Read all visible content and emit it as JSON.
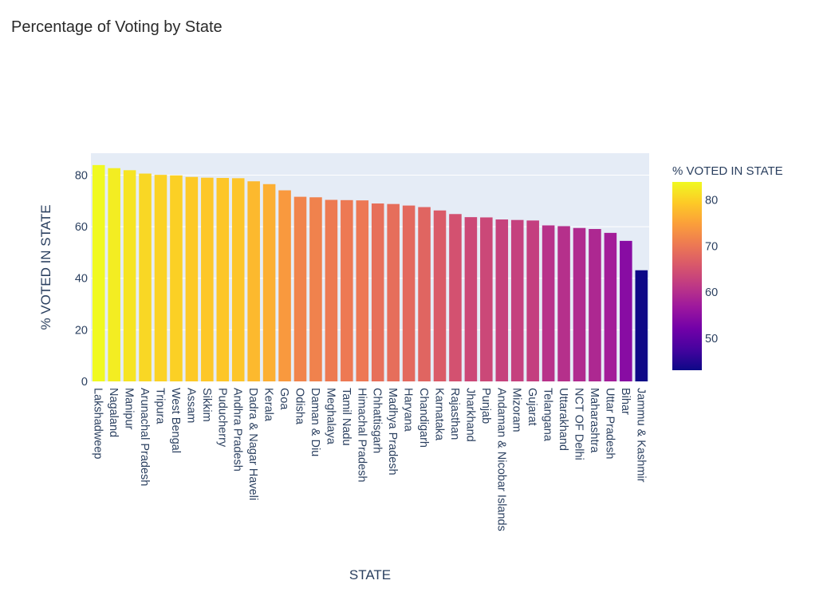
{
  "chart_data": {
    "type": "bar",
    "title": "Percentage of Voting by State",
    "xlabel": "STATE",
    "ylabel": "% VOTED IN STATE",
    "ylim": [
      0,
      88.5
    ],
    "yticks": [
      0,
      20,
      40,
      60,
      80
    ],
    "colorbar": {
      "title": "% VOTED IN STATE",
      "range": [
        43.1,
        83.9
      ],
      "ticks": [
        50,
        60,
        70,
        80
      ],
      "colorscale": [
        "#0d0887",
        "#46039f",
        "#7201a8",
        "#9c179e",
        "#bd3786",
        "#d8576b",
        "#ed7953",
        "#fb9f3a",
        "#fdca26",
        "#f0f921"
      ]
    },
    "background": "#e5ecf6",
    "grid": true,
    "categories": [
      "Lakshadweep",
      "Nagaland",
      "Manipur",
      "Arunachal Pradesh",
      "Tripura",
      "West Bengal",
      "Assam",
      "Sikkim",
      "Puducherry",
      "Andhra Pradesh",
      "Dadra & Nagar Haveli",
      "Kerala",
      "Goa",
      "Odisha",
      "Daman & Diu",
      "Meghalaya",
      "Tamil Nadu",
      "Himachal Pradesh",
      "Chhattisgarh",
      "Madhya Pradesh",
      "Haryana",
      "Chandigarh",
      "Karnataka",
      "Rajasthan",
      "Jharkhand",
      "Punjab",
      "Andaman & Nicobar Islands",
      "Mizoram",
      "Gujarat",
      "Telangana",
      "Uttarakhand",
      "NCT OF Delhi",
      "Maharashtra",
      "Uttar Pradesh",
      "Bihar",
      "Jammu & Kashmir"
    ],
    "values": [
      83.9,
      82.7,
      81.9,
      80.6,
      80.1,
      79.9,
      79.3,
      79.0,
      78.9,
      78.8,
      77.6,
      76.5,
      74.1,
      71.6,
      71.4,
      70.4,
      70.3,
      70.2,
      69.0,
      68.8,
      68.2,
      67.6,
      66.3,
      64.9,
      63.7,
      63.6,
      62.8,
      62.6,
      62.4,
      60.5,
      60.2,
      59.5,
      59.1,
      57.6,
      54.5,
      43.1
    ]
  }
}
